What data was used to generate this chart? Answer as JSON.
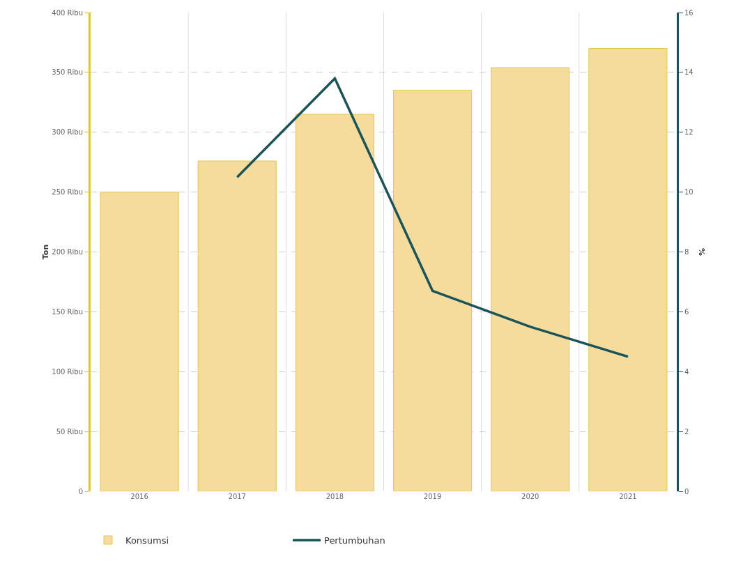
{
  "chart_data": {
    "type": "bar",
    "categories": [
      "2016",
      "2017",
      "2018",
      "2019",
      "2020",
      "2021"
    ],
    "ylabel": "Ton",
    "y2label": "%",
    "series": [
      {
        "name": "Konsumsi",
        "color": "#f5dc9c",
        "values": [
          250,
          276,
          315,
          335,
          354,
          370
        ]
      },
      {
        "name": "Pertumbuhan",
        "type": "line",
        "axis": "y2",
        "color": "#1b535a",
        "values": [
          null,
          10.5,
          13.8,
          6.7,
          5.5,
          4.5
        ]
      }
    ],
    "ylim": [
      0,
      400
    ],
    "yticks": [
      0,
      {
        "value": 50,
        "label": "50 Ribu"
      },
      {
        "value": 100,
        "label": "100 Ribu"
      },
      {
        "value": 150,
        "label": "150 Ribu"
      },
      {
        "value": 200,
        "label": "200 Ribu"
      },
      {
        "value": 250,
        "label": "250 Ribu"
      },
      {
        "value": 300,
        "label": "300 Ribu"
      },
      {
        "value": 350,
        "label": "350 Ribu"
      },
      {
        "value": 400,
        "label": "400 Ribu"
      }
    ],
    "y2lim": [
      0,
      16
    ],
    "y2ticks": [
      0,
      2,
      4,
      6,
      8,
      10,
      12,
      14,
      16
    ],
    "grid": true,
    "legend": "bottom left",
    "marker": "none",
    "line_style": "solid"
  }
}
